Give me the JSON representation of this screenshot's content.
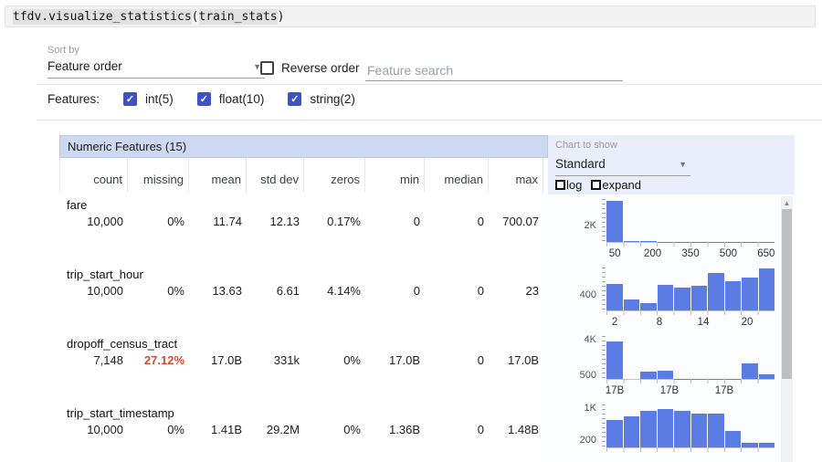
{
  "colors": {
    "bar_blue": "#5b7ce2",
    "checkbox_indigo": "#3d53c5",
    "alert_red": "#d64a32",
    "table_header_blue": "#ccd9f0",
    "panel_blue": "#e9eefa"
  },
  "code": {
    "function": "tfdv.visualize_statistics",
    "open": "(",
    "argument": "train_stats",
    "close": ")"
  },
  "sort": {
    "label": "Sort by",
    "value": "Feature order"
  },
  "reverse_order": {
    "label": "Reverse order",
    "checked": false
  },
  "search": {
    "placeholder": "Feature search"
  },
  "features_filter": {
    "label": "Features:",
    "items": [
      {
        "label": "int(5)",
        "checked": true
      },
      {
        "label": "float(10)",
        "checked": true
      },
      {
        "label": "string(2)",
        "checked": true
      }
    ]
  },
  "table": {
    "title": "Numeric Features (15)",
    "columns": [
      "count",
      "missing",
      "mean",
      "std dev",
      "zeros",
      "min",
      "median",
      "max"
    ],
    "rows": [
      {
        "feature": "fare",
        "values": [
          "10,000",
          "0%",
          "11.74",
          "12.13",
          "0.17%",
          "0",
          "0",
          "700.07"
        ]
      },
      {
        "feature": "trip_start_hour",
        "values": [
          "10,000",
          "0%",
          "13.63",
          "6.61",
          "4.14%",
          "0",
          "0",
          "23"
        ]
      },
      {
        "feature": "dropoff_census_tract",
        "values": [
          "7,148",
          "27.12%",
          "17.0B",
          "331k",
          "0%",
          "17.0B",
          "0",
          "17.0B"
        ],
        "missing_alert": true
      },
      {
        "feature": "trip_start_timestamp",
        "values": [
          "10,000",
          "0%",
          "1.41B",
          "29.2M",
          "0%",
          "1.36B",
          "0",
          "1.48B"
        ]
      }
    ]
  },
  "chart_panel": {
    "label": "Chart to show",
    "value": "Standard",
    "log_label": "log",
    "expand_label": "expand",
    "log_checked": false,
    "expand_checked": false
  },
  "chart_data": [
    {
      "type": "histogram",
      "feature": "fare",
      "values": [
        4800,
        150,
        70,
        50,
        40,
        30,
        25,
        20,
        15,
        35
      ],
      "ymax": 5000,
      "y_axis_labels": [
        "2K"
      ],
      "y_label_pos": [
        60
      ],
      "x_ticks": [
        "50",
        "200",
        "350",
        "500",
        "650"
      ],
      "x_tick_pos": [
        5,
        27.5,
        50,
        72.5,
        95
      ]
    },
    {
      "type": "histogram",
      "feature": "trip_start_hour",
      "values": [
        650,
        260,
        180,
        630,
        560,
        600,
        920,
        710,
        810,
        1020
      ],
      "ymax": 1050,
      "y_axis_labels": [
        "400"
      ],
      "y_label_pos": [
        62
      ],
      "x_ticks": [
        "2",
        "8",
        "14",
        "20"
      ],
      "x_tick_pos": [
        4.9,
        31.5,
        57.6,
        83.7
      ]
    },
    {
      "type": "histogram",
      "feature": "dropoff_census_tract",
      "values": [
        3870,
        0,
        750,
        880,
        45,
        25,
        20,
        10,
        1630,
        440
      ],
      "ymax": 4400,
      "y_axis_labels": [
        "4K",
        "500"
      ],
      "y_label_pos": [
        9,
        88.6
      ],
      "x_ticks": [
        "17B",
        "17B",
        "17B"
      ],
      "x_tick_pos": [
        4.9,
        37.5,
        70.1
      ]
    },
    {
      "type": "histogram",
      "feature": "trip_start_timestamp",
      "values": [
        700,
        780,
        920,
        970,
        920,
        850,
        850,
        420,
        120,
        120
      ],
      "ymax": 1080,
      "y_axis_labels": [
        "1K",
        "200"
      ],
      "y_label_pos": [
        7.4,
        81.5
      ],
      "x_ticks": [],
      "x_tick_pos": []
    }
  ]
}
